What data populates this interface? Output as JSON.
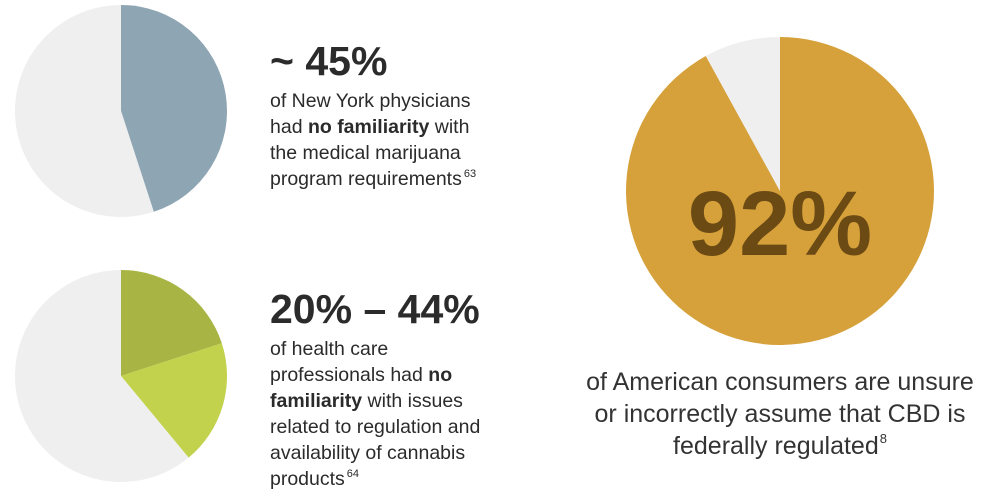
{
  "chart_data": [
    {
      "type": "pie",
      "slices": [
        {
          "value": 45,
          "color": "#8ea5b3"
        },
        {
          "value": 55,
          "color": "#efefef"
        }
      ]
    },
    {
      "type": "pie",
      "slices": [
        {
          "value": 20,
          "color": "#a8b544"
        },
        {
          "value": 19,
          "color": "#c2d24c"
        },
        {
          "value": 61,
          "color": "#efefef"
        }
      ]
    },
    {
      "type": "pie",
      "slices": [
        {
          "value": 92,
          "color": "#d6a13a"
        },
        {
          "value": 8,
          "color": "#efefef"
        }
      ],
      "center_label": "92%",
      "center_label_color": "#6b4a14"
    }
  ],
  "stat1": {
    "headline": "~ 45%",
    "line1": "of New York physicians",
    "line2_pre": "had ",
    "line2_bold": "no familiarity",
    "line2_post": " with",
    "line3": "the medical marijuana",
    "line4": "program requirements",
    "footnote": "63"
  },
  "stat2": {
    "headline": "20% – 44%",
    "line1": "of health care",
    "line2_pre": "professionals had ",
    "line2_bold": "no",
    "line3_bold": "familiarity",
    "line3_post": " with issues",
    "line4": "related to regulation and",
    "line5": "availability of cannabis",
    "line6": "products",
    "footnote": "64"
  },
  "stat3": {
    "line1": "of American consumers are unsure",
    "line2": "or incorrectly assume that CBD is",
    "line3": "federally regulated",
    "footnote": "8"
  }
}
